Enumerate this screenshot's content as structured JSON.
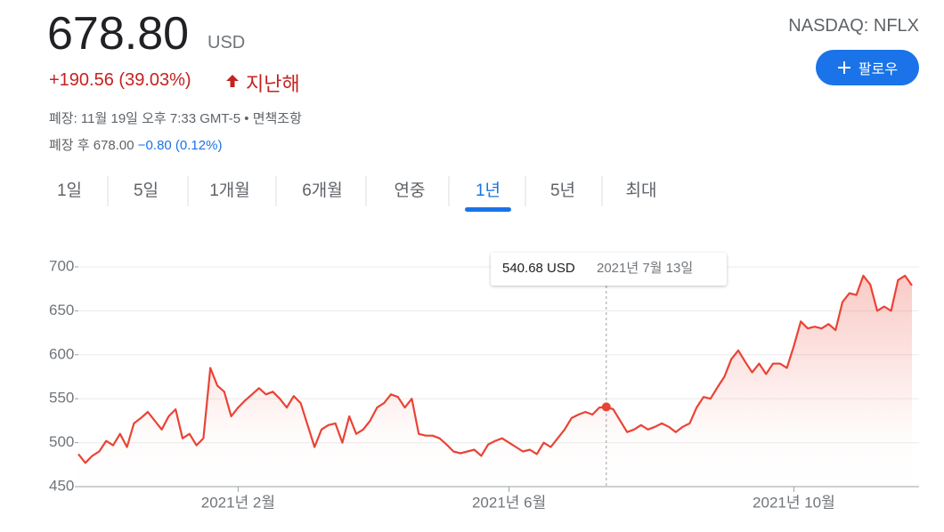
{
  "header": {
    "price": "678.80",
    "currency": "USD",
    "change": "+190.56 (39.03%)",
    "period": "지난해",
    "ticker": "NASDAQ: NFLX",
    "follow": "팔로우",
    "status": "폐장: 11월 19일 오후 7:33 GMT-5 •",
    "disclaimer": "면책조항",
    "after_hours": "폐장 후 678.00",
    "after_hours_change": "−0.80 (0.12%)"
  },
  "tabs": {
    "items": [
      "1일",
      "5일",
      "1개월",
      "6개월",
      "연중",
      "1년",
      "5년",
      "최대"
    ],
    "selected": "1년"
  },
  "chart_data": {
    "type": "line",
    "color": "#ea4335",
    "categories": [
      null,
      null,
      null,
      null,
      null,
      null,
      null,
      null,
      null,
      null,
      null,
      null,
      null,
      null,
      null,
      null,
      null,
      null,
      null,
      null,
      null,
      null,
      null,
      "2021년 2월",
      null,
      null,
      null,
      null,
      null,
      null,
      null,
      null,
      null,
      null,
      null,
      null,
      null,
      null,
      null,
      null,
      null,
      null,
      null,
      null,
      null,
      null,
      null,
      null,
      null,
      null,
      null,
      null,
      null,
      null,
      null,
      null,
      null,
      null,
      null,
      null,
      null,
      null,
      "2021년 6월",
      null,
      null,
      null,
      null,
      null,
      null,
      null,
      null,
      null,
      null,
      null,
      null,
      null,
      null,
      null,
      null,
      null,
      null,
      null,
      null,
      null,
      null,
      null,
      null,
      null,
      null,
      null,
      null,
      null,
      null,
      null,
      null,
      null,
      null,
      null,
      null,
      null,
      null,
      null,
      null,
      "2021년 10월",
      null,
      null,
      null,
      null,
      null,
      null,
      null,
      null,
      null,
      null,
      null,
      null,
      null,
      null,
      null,
      null,
      null
    ],
    "values": [
      487,
      477,
      485,
      490,
      502,
      497,
      510,
      495,
      522,
      528,
      535,
      525,
      515,
      530,
      538,
      505,
      510,
      497,
      505,
      585,
      565,
      558,
      530,
      540,
      548,
      555,
      562,
      555,
      558,
      550,
      540,
      553,
      545,
      520,
      495,
      515,
      520,
      522,
      500,
      530,
      510,
      515,
      525,
      540,
      545,
      555,
      552,
      540,
      550,
      510,
      508,
      508,
      505,
      498,
      490,
      488,
      490,
      492,
      485,
      498,
      502,
      505,
      500,
      495,
      490,
      492,
      487,
      500,
      495,
      505,
      515,
      528,
      532,
      535,
      532,
      540,
      540.68,
      538,
      525,
      512,
      515,
      520,
      515,
      518,
      522,
      518,
      512,
      518,
      522,
      540,
      552,
      550,
      563,
      575,
      595,
      605,
      592,
      580,
      590,
      578,
      590,
      590,
      585,
      610,
      638,
      630,
      632,
      630,
      635,
      628,
      660,
      670,
      668,
      690,
      680,
      650,
      655,
      650,
      685,
      690,
      678.8
    ],
    "ylim": [
      450,
      700
    ],
    "yticks": [
      450,
      500,
      550,
      600,
      650,
      700
    ],
    "grid": true,
    "tooltip": {
      "value": 540.68,
      "label": "540.68 USD",
      "date": "2021년 7월 13일"
    }
  }
}
